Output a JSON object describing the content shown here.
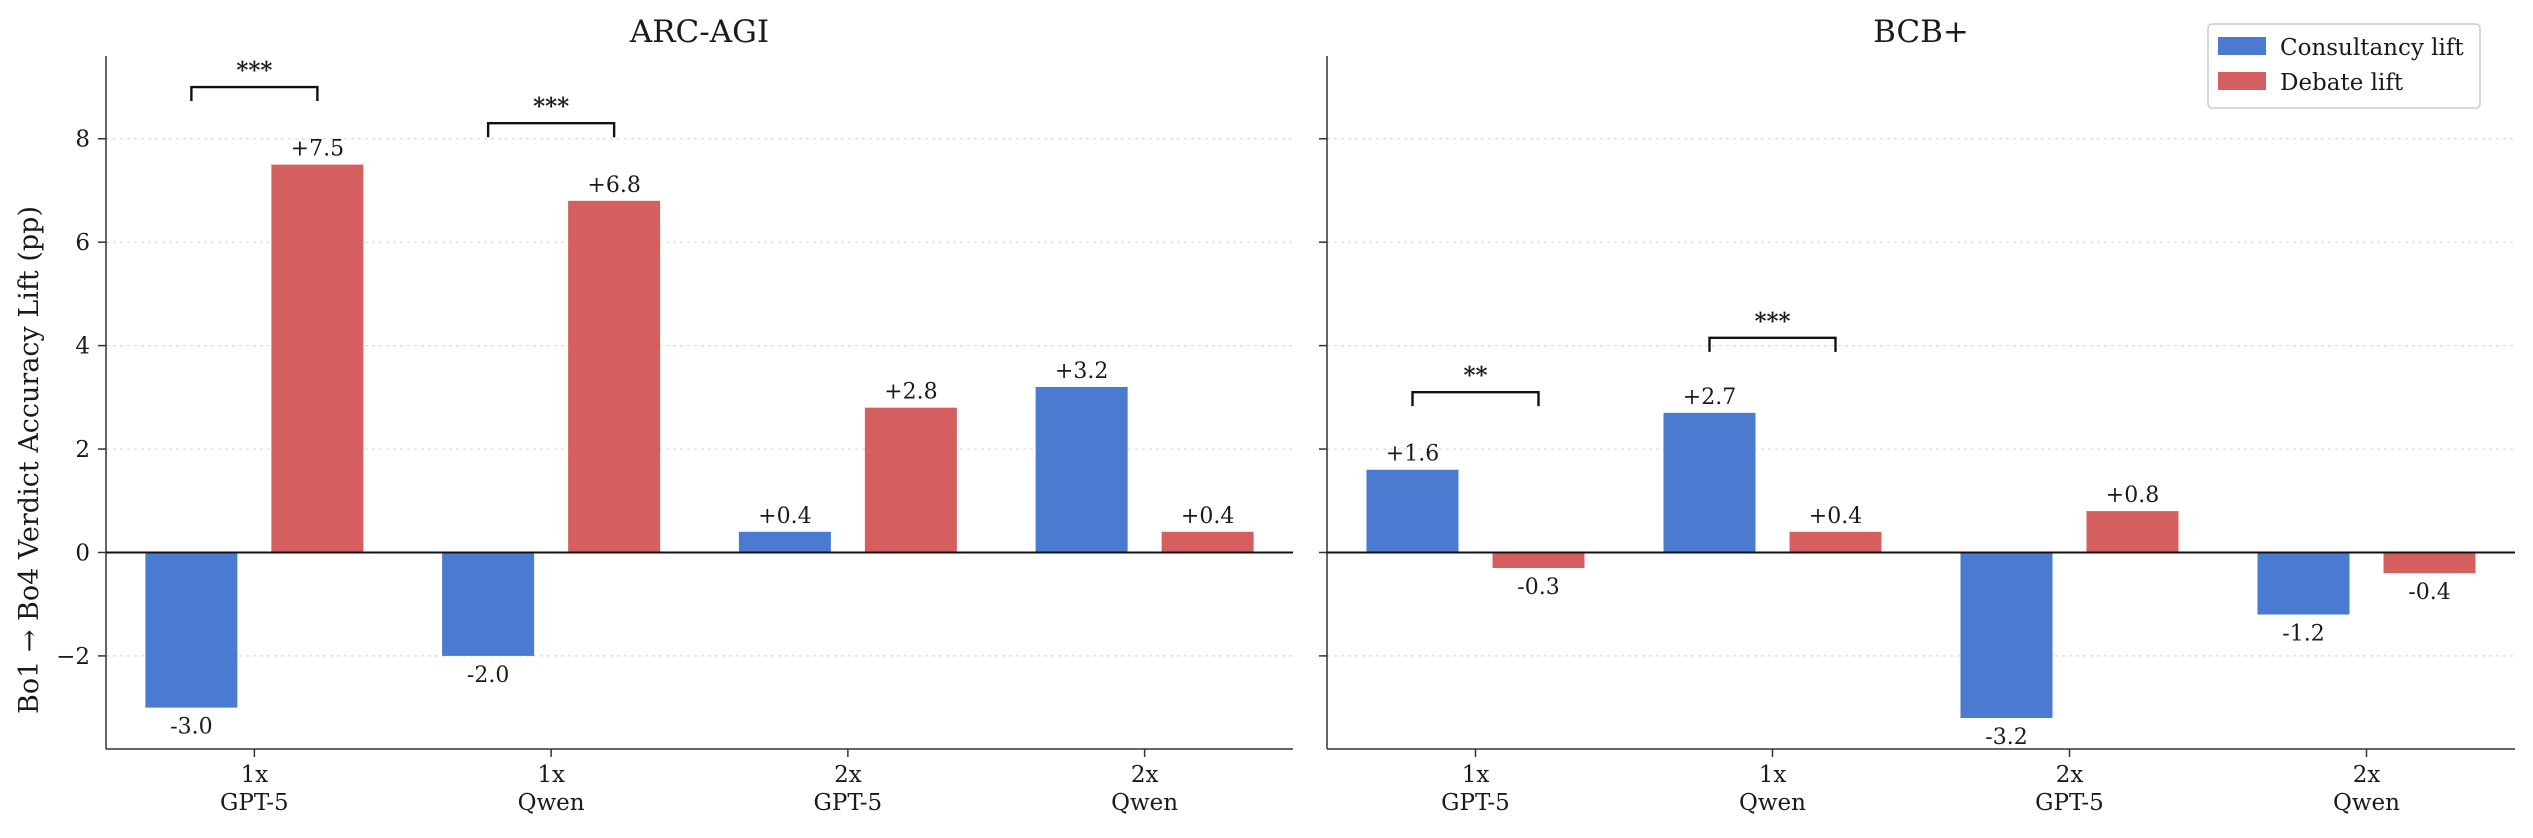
{
  "figure": {
    "ylabel": "Bo1 → Bo4 Verdict Accuracy Lift (pp)",
    "legend": {
      "placement": "upper-right",
      "entries": [
        {
          "label": "Consultancy lift",
          "color": "#4a7bd1"
        },
        {
          "label": "Debate lift",
          "color": "#d55f5f"
        }
      ]
    }
  },
  "chart_data": [
    {
      "type": "bar",
      "title": "ARC-AGI",
      "xlabel": "",
      "ylabel": "Bo1 → Bo4 Verdict Accuracy Lift (pp)",
      "ylim": [
        -3.8,
        9.6
      ],
      "yticks": [
        -2,
        0,
        2,
        4,
        6,
        8
      ],
      "ytick_labels": [
        "−2",
        "0",
        "2",
        "4",
        "6",
        "8"
      ],
      "grid": "horizontal dotted",
      "categories": [
        "1x\nGPT-5",
        "1x\nQwen",
        "2x\nGPT-5",
        "2x\nQwen"
      ],
      "series": [
        {
          "name": "Consultancy lift",
          "color": "#4a7bd1",
          "values": [
            -3.0,
            -2.0,
            0.4,
            3.2
          ],
          "labels": [
            "-3.0",
            "-2.0",
            "+0.4",
            "+3.2"
          ]
        },
        {
          "name": "Debate lift",
          "color": "#d55f5f",
          "values": [
            7.5,
            6.8,
            2.8,
            0.4
          ],
          "labels": [
            "+7.5",
            "+6.8",
            "+2.8",
            "+0.4"
          ]
        }
      ],
      "significance": [
        {
          "category": 0,
          "label": "***",
          "bracket_y": 9.0
        },
        {
          "category": 1,
          "label": "***",
          "bracket_y": 8.3
        }
      ]
    },
    {
      "type": "bar",
      "title": "BCB+",
      "xlabel": "",
      "ylabel": "",
      "ylim": [
        -3.8,
        9.6
      ],
      "yticks": [
        -2,
        0,
        2,
        4,
        6,
        8
      ],
      "ytick_labels": [
        "",
        "",
        "",
        "",
        "",
        ""
      ],
      "grid": "horizontal dotted",
      "categories": [
        "1x\nGPT-5",
        "1x\nQwen",
        "2x\nGPT-5",
        "2x\nQwen"
      ],
      "series": [
        {
          "name": "Consultancy lift",
          "color": "#4a7bd1",
          "values": [
            1.6,
            2.7,
            -3.2,
            -1.2
          ],
          "labels": [
            "+1.6",
            "+2.7",
            "-3.2",
            "-1.2"
          ]
        },
        {
          "name": "Debate lift",
          "color": "#d55f5f",
          "values": [
            -0.3,
            0.4,
            0.8,
            -0.4
          ],
          "labels": [
            "-0.3",
            "+0.4",
            "+0.8",
            "-0.4"
          ]
        }
      ],
      "significance": [
        {
          "category": 0,
          "label": "**",
          "bracket_y": 3.1
        },
        {
          "category": 1,
          "label": "***",
          "bracket_y": 4.15
        }
      ]
    }
  ]
}
